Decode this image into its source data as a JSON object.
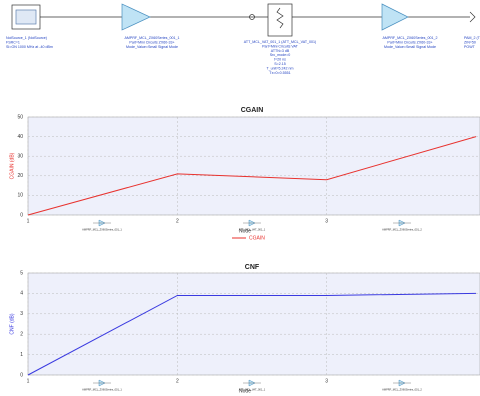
{
  "schematic": {
    "components": [
      {
        "label": [
          "NoiSource_1 (NoiSource)",
          "FSRC=1",
          "SI=ON 1000 MHz at -40 dBm"
        ]
      },
      {
        "label": [
          "AMPRF_MCL_ZX60Series_001_1",
          "Part=Mini Circuits ZX60-33+",
          "Mode_Value=Small Signal Mode"
        ]
      },
      {
        "label": [
          "ATT_MCL_VAT_001_1 (ATT_MCL_VAT_001)",
          "Part=Mini Circuits VAT",
          "ATTN=3 dB",
          "Src_mode=0",
          "t=20 ns",
          "S=2.15",
          "T_unit=5.242 nm",
          "Tx=0=0.5551"
        ]
      },
      {
        "label": [
          "AMPRF_MCL_ZX60Series_001_2",
          "Part=Mini Circuits ZX60-33+",
          "Mode_Value=Small Signal Mode"
        ]
      },
      {
        "label": [
          "PAM_2 (TO",
          "ZIN=50",
          "POWT"
        ]
      }
    ]
  },
  "chart_data": [
    {
      "type": "line",
      "title": "CGAIN",
      "x_label": "Node",
      "y_label": "CGAIN (dB)",
      "x": [
        1,
        2,
        3,
        4
      ],
      "series": [
        {
          "name": "CGAIN",
          "color": "#e8322e",
          "values": [
            0,
            21,
            18,
            40
          ]
        }
      ],
      "xlim": [
        1,
        4
      ],
      "xticks": [
        1,
        2,
        3
      ],
      "ylim": [
        0,
        50
      ],
      "yticks": [
        0,
        10,
        20,
        30,
        40,
        50
      ],
      "grid": true,
      "x_annotations": [
        "AMPRF_MCL_ZX60Series_001_1",
        "ATT_MCL_VAT_001_1",
        "AMPRF_MCL_ZX60Series_001_2"
      ]
    },
    {
      "type": "line",
      "title": "CNF",
      "x_label": "Node",
      "y_label": "CNF (dB)",
      "x": [
        1,
        2,
        3,
        4
      ],
      "series": [
        {
          "color": "#3a3ae0",
          "values": [
            0,
            3.9,
            3.9,
            4.0
          ]
        }
      ],
      "xlim": [
        1,
        4
      ],
      "xticks": [
        1,
        2,
        3
      ],
      "ylim": [
        0,
        5
      ],
      "yticks": [
        0,
        1,
        2,
        3,
        4,
        5
      ],
      "grid": true,
      "x_annotations": [
        "AMPRF_MCL_ZX60Series_001_1",
        "ATT_MCL_VAT_001_1",
        "AMPRF_MCL_ZX60Series_001_2"
      ]
    }
  ]
}
